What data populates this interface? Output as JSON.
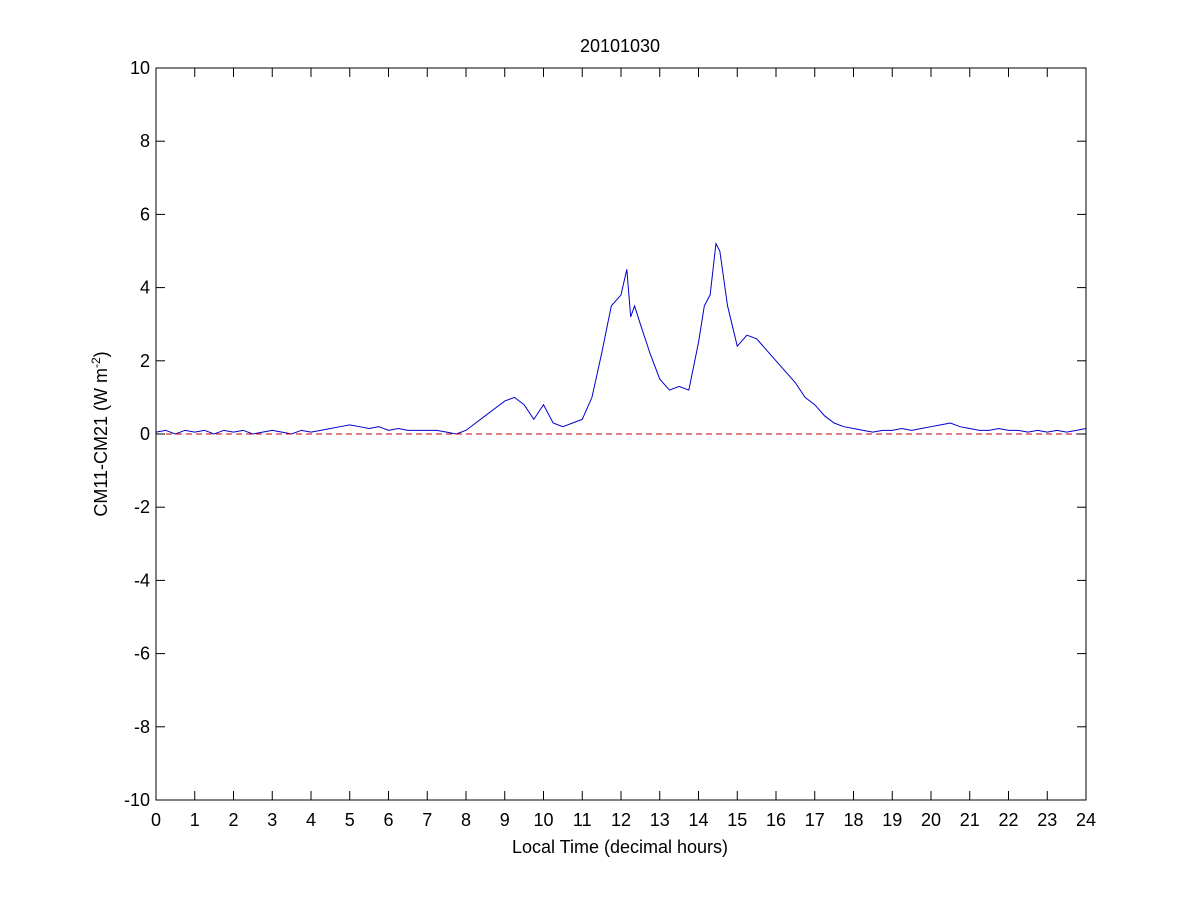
{
  "chart_data": {
    "type": "line",
    "title": "20101030",
    "xlabel": "Local Time (decimal hours)",
    "ylabel": "CM11-CM21 (W m",
    "ylabel_superscript": "-2",
    "ylabel_close": ")",
    "xlim": [
      0,
      24
    ],
    "ylim": [
      -10,
      10
    ],
    "xticks": [
      0,
      1,
      2,
      3,
      4,
      5,
      6,
      7,
      8,
      9,
      10,
      11,
      12,
      13,
      14,
      15,
      16,
      17,
      18,
      19,
      20,
      21,
      22,
      23,
      24
    ],
    "xtick_labels": [
      "0",
      "1",
      "2",
      "3",
      "4",
      "5",
      "6",
      "7",
      "8",
      "9",
      "10",
      "11",
      "12",
      "13",
      "14",
      "15",
      "16",
      "17",
      "18",
      "19",
      "20",
      "21",
      "22",
      "23",
      "24"
    ],
    "yticks": [
      -10,
      -8,
      -6,
      -4,
      -2,
      0,
      2,
      4,
      6,
      8,
      10
    ],
    "ytick_labels": [
      "-10",
      "-8",
      "-6",
      "-4",
      "-2",
      "0",
      "2",
      "4",
      "6",
      "8",
      "10"
    ],
    "grid": false,
    "legend": "none",
    "series": [
      {
        "style": "solid",
        "color": "#0000cc",
        "x": [
          0,
          0.25,
          0.5,
          0.75,
          1,
          1.25,
          1.5,
          1.75,
          2,
          2.25,
          2.5,
          2.75,
          3,
          3.25,
          3.5,
          3.75,
          4,
          4.25,
          4.5,
          4.75,
          5,
          5.25,
          5.5,
          5.75,
          6,
          6.25,
          6.5,
          6.75,
          7,
          7.25,
          7.5,
          7.75,
          8,
          8.25,
          8.5,
          8.75,
          9,
          9.25,
          9.5,
          9.75,
          10,
          10.25,
          10.5,
          10.75,
          11,
          11.25,
          11.5,
          11.75,
          12,
          12.15,
          12.25,
          12.35,
          12.5,
          12.75,
          13,
          13.25,
          13.5,
          13.75,
          14,
          14.15,
          14.3,
          14.45,
          14.55,
          14.75,
          15,
          15.25,
          15.5,
          15.75,
          16,
          16.25,
          16.5,
          16.75,
          17,
          17.25,
          17.5,
          17.75,
          18,
          18.25,
          18.5,
          18.75,
          19,
          19.25,
          19.5,
          19.75,
          20,
          20.25,
          20.5,
          20.75,
          21,
          21.25,
          21.5,
          21.75,
          22,
          22.25,
          22.5,
          22.75,
          23,
          23.25,
          23.5,
          23.75,
          24
        ],
        "y": [
          0.05,
          0.1,
          0.0,
          0.1,
          0.05,
          0.1,
          0.0,
          0.1,
          0.05,
          0.1,
          0.0,
          0.05,
          0.1,
          0.05,
          0.0,
          0.1,
          0.05,
          0.1,
          0.15,
          0.2,
          0.25,
          0.2,
          0.15,
          0.2,
          0.1,
          0.15,
          0.1,
          0.1,
          0.1,
          0.1,
          0.05,
          0.0,
          0.1,
          0.3,
          0.5,
          0.7,
          0.9,
          1.0,
          0.8,
          0.4,
          0.8,
          0.3,
          0.2,
          0.3,
          0.4,
          1.0,
          2.2,
          3.5,
          3.8,
          4.5,
          3.2,
          3.5,
          3.0,
          2.2,
          1.5,
          1.2,
          1.3,
          1.2,
          2.5,
          3.5,
          3.8,
          5.2,
          5.0,
          3.5,
          2.4,
          2.7,
          2.6,
          2.3,
          2.0,
          1.7,
          1.4,
          1.0,
          0.8,
          0.5,
          0.3,
          0.2,
          0.15,
          0.1,
          0.05,
          0.1,
          0.1,
          0.15,
          0.1,
          0.15,
          0.2,
          0.25,
          0.3,
          0.2,
          0.15,
          0.1,
          0.1,
          0.15,
          0.1,
          0.1,
          0.05,
          0.1,
          0.05,
          0.1,
          0.05,
          0.1,
          0.15
        ]
      },
      {
        "style": "dashed",
        "color": "#cc0000",
        "x": [
          0,
          24
        ],
        "y": [
          0,
          0
        ]
      }
    ]
  }
}
